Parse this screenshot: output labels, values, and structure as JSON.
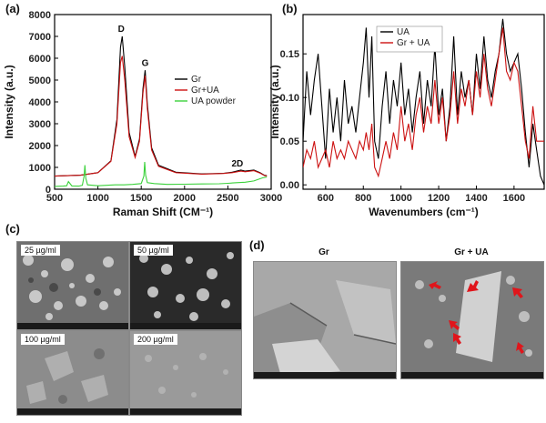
{
  "panels": {
    "a": "(a)",
    "b": "(b)",
    "c": "(c)",
    "d": "(d)"
  },
  "colors": {
    "gr": "#000000",
    "gr_ua": "#cc1111",
    "ua_powder": "#3ad13a",
    "arrow": "#e0151b"
  },
  "chart_data": [
    {
      "type": "line",
      "xlabel": "Raman Shift (CM⁻¹)",
      "ylabel": "Intensity (a.u.)",
      "xlim": [
        500,
        3000
      ],
      "ylim": [
        0,
        8000
      ],
      "xticks": [
        500,
        1000,
        1500,
        2000,
        2500,
        3000
      ],
      "yticks": [
        0,
        1000,
        2000,
        3000,
        4000,
        5000,
        6000,
        7000,
        8000
      ],
      "legend": "right",
      "annotations": [
        {
          "text": "D",
          "x": 1270,
          "y": 7200
        },
        {
          "text": "G",
          "x": 1545,
          "y": 5650
        },
        {
          "text": "2D",
          "x": 2610,
          "y": 1050
        }
      ],
      "series": [
        {
          "name": "Gr",
          "color": "#000000",
          "x": [
            500,
            800,
            1000,
            1150,
            1220,
            1260,
            1280,
            1310,
            1360,
            1430,
            1480,
            1520,
            1545,
            1570,
            1620,
            1700,
            1900,
            2200,
            2450,
            2550,
            2650,
            2700,
            2800,
            2870,
            2920,
            2950
          ],
          "y": [
            600,
            640,
            760,
            1300,
            3200,
            6500,
            7000,
            5600,
            2600,
            1500,
            2300,
            4600,
            5450,
            3900,
            1900,
            1100,
            780,
            700,
            730,
            780,
            880,
            830,
            880,
            760,
            640,
            620
          ]
        },
        {
          "name": "Gr+UA",
          "color": "#cc1111",
          "x": [
            500,
            800,
            1000,
            1150,
            1220,
            1260,
            1280,
            1310,
            1360,
            1430,
            1480,
            1520,
            1545,
            1570,
            1620,
            1700,
            1900,
            2200,
            2450,
            2550,
            2650,
            2700,
            2800,
            2870,
            2920,
            2950
          ],
          "y": [
            600,
            640,
            760,
            1280,
            3000,
            5800,
            6100,
            5000,
            2400,
            1450,
            2200,
            4400,
            5200,
            3700,
            1800,
            1050,
            760,
            690,
            720,
            760,
            830,
            800,
            850,
            740,
            630,
            610
          ]
        },
        {
          "name": "UA powder",
          "color": "#3ad13a",
          "x": [
            500,
            600,
            640,
            660,
            700,
            780,
            820,
            840,
            850,
            860,
            880,
            1000,
            1100,
            1200,
            1300,
            1400,
            1500,
            1530,
            1540,
            1550,
            1570,
            1650,
            1800,
            2000,
            2200,
            2400,
            2500,
            2600,
            2700,
            2800,
            2900,
            2950
          ],
          "y": [
            130,
            140,
            160,
            350,
            150,
            140,
            180,
            600,
            1100,
            500,
            200,
            160,
            180,
            200,
            200,
            220,
            260,
            600,
            1250,
            650,
            300,
            260,
            220,
            230,
            240,
            250,
            270,
            300,
            320,
            380,
            520,
            560
          ]
        }
      ]
    },
    {
      "type": "line",
      "xlabel": "Wavenumbers (cm⁻¹)",
      "ylabel": "Intensity (a.u.)",
      "xlim": [
        480,
        1760
      ],
      "ylim": [
        -0.005,
        0.195
      ],
      "xticks": [
        600,
        800,
        1000,
        1200,
        1400,
        1600
      ],
      "yticks": [
        0.0,
        0.05,
        0.1,
        0.15
      ],
      "ytick_labels": [
        "0.00",
        "0.05",
        "0.10",
        "0.15"
      ],
      "legend": "top-left",
      "series": [
        {
          "name": "UA",
          "color": "#000000",
          "x": [
            480,
            500,
            520,
            540,
            560,
            580,
            600,
            620,
            640,
            660,
            680,
            700,
            720,
            740,
            760,
            780,
            800,
            815,
            830,
            845,
            860,
            880,
            900,
            920,
            940,
            960,
            980,
            1000,
            1020,
            1040,
            1060,
            1080,
            1100,
            1120,
            1140,
            1160,
            1180,
            1200,
            1220,
            1240,
            1260,
            1280,
            1300,
            1320,
            1340,
            1360,
            1380,
            1400,
            1420,
            1440,
            1460,
            1480,
            1500,
            1520,
            1540,
            1560,
            1580,
            1600,
            1620,
            1640,
            1660,
            1680,
            1700,
            1720,
            1740,
            1760
          ],
          "y": [
            0.05,
            0.13,
            0.08,
            0.12,
            0.15,
            0.09,
            0.03,
            0.11,
            0.06,
            0.1,
            0.05,
            0.12,
            0.07,
            0.09,
            0.06,
            0.1,
            0.14,
            0.18,
            0.1,
            0.17,
            0.05,
            0.03,
            0.09,
            0.13,
            0.07,
            0.12,
            0.09,
            0.14,
            0.08,
            0.11,
            0.06,
            0.1,
            0.13,
            0.07,
            0.12,
            0.09,
            0.16,
            0.08,
            0.11,
            0.05,
            0.09,
            0.17,
            0.08,
            0.13,
            0.1,
            0.12,
            0.08,
            0.15,
            0.11,
            0.17,
            0.12,
            0.1,
            0.13,
            0.15,
            0.19,
            0.15,
            0.13,
            0.14,
            0.15,
            0.11,
            0.06,
            0.02,
            0.07,
            0.04,
            0.01,
            0.0
          ]
        },
        {
          "name": "Gr + UA",
          "color": "#cc1111",
          "x": [
            480,
            500,
            520,
            540,
            560,
            580,
            600,
            620,
            640,
            660,
            680,
            700,
            720,
            740,
            760,
            780,
            800,
            815,
            830,
            845,
            860,
            880,
            900,
            920,
            940,
            960,
            980,
            1000,
            1020,
            1040,
            1060,
            1080,
            1100,
            1120,
            1140,
            1160,
            1180,
            1200,
            1220,
            1240,
            1260,
            1280,
            1300,
            1320,
            1340,
            1360,
            1380,
            1400,
            1420,
            1440,
            1460,
            1480,
            1500,
            1520,
            1540,
            1560,
            1580,
            1600,
            1620,
            1640,
            1660,
            1680,
            1700,
            1720,
            1740,
            1760
          ],
          "y": [
            0.02,
            0.04,
            0.03,
            0.05,
            0.02,
            0.03,
            0.04,
            0.02,
            0.05,
            0.03,
            0.04,
            0.03,
            0.05,
            0.04,
            0.03,
            0.05,
            0.04,
            0.06,
            0.04,
            0.07,
            0.02,
            0.01,
            0.03,
            0.05,
            0.03,
            0.06,
            0.04,
            0.09,
            0.05,
            0.07,
            0.04,
            0.08,
            0.1,
            0.06,
            0.09,
            0.07,
            0.12,
            0.07,
            0.1,
            0.05,
            0.08,
            0.13,
            0.07,
            0.11,
            0.09,
            0.12,
            0.08,
            0.13,
            0.1,
            0.15,
            0.11,
            0.09,
            0.12,
            0.15,
            0.18,
            0.13,
            0.12,
            0.14,
            0.13,
            0.09,
            0.05,
            0.03,
            0.09,
            0.05,
            0.05,
            0.05
          ]
        }
      ]
    }
  ],
  "sem_c": {
    "labels": [
      "25 µg/ml",
      "50 µg/ml",
      "100 µg/ml",
      "200 µg/ml"
    ]
  },
  "sem_d": {
    "titles": [
      "Gr",
      "Gr + UA"
    ]
  }
}
